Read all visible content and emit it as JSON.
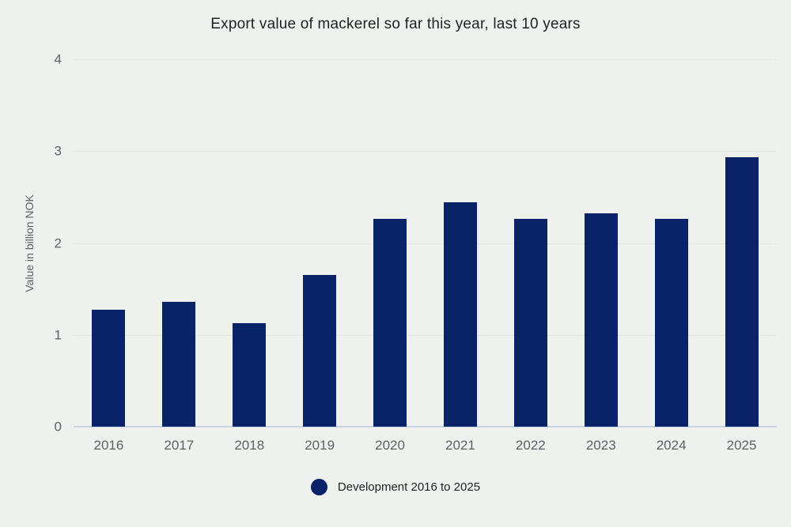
{
  "title": "Export value of mackerel so far this year, last 10 years",
  "colors": {
    "background": "#eff1ee",
    "bar": "#0a2268",
    "gridline": "#e3e5e2",
    "baseline": "#c9d2e2",
    "axis_text": "#5e6165",
    "title_text": "#1f2124"
  },
  "legend": {
    "label": "Development 2016 to 2025"
  },
  "chart_data": {
    "type": "bar",
    "title": "Export value of mackerel so far this year, last 10 years",
    "categories": [
      "2016",
      "2017",
      "2018",
      "2019",
      "2020",
      "2021",
      "2022",
      "2023",
      "2024",
      "2025"
    ],
    "values": [
      1.27,
      1.36,
      1.13,
      1.65,
      2.26,
      2.44,
      2.26,
      2.32,
      2.26,
      2.93
    ],
    "xlabel": "",
    "ylabel": "Value in billion NOK",
    "ylim": [
      0,
      4
    ],
    "yticks": [
      0,
      1,
      2,
      3,
      4
    ],
    "grid": true,
    "legend_entries": [
      "Development 2016 to 2025"
    ],
    "legend_position": "bottom"
  }
}
